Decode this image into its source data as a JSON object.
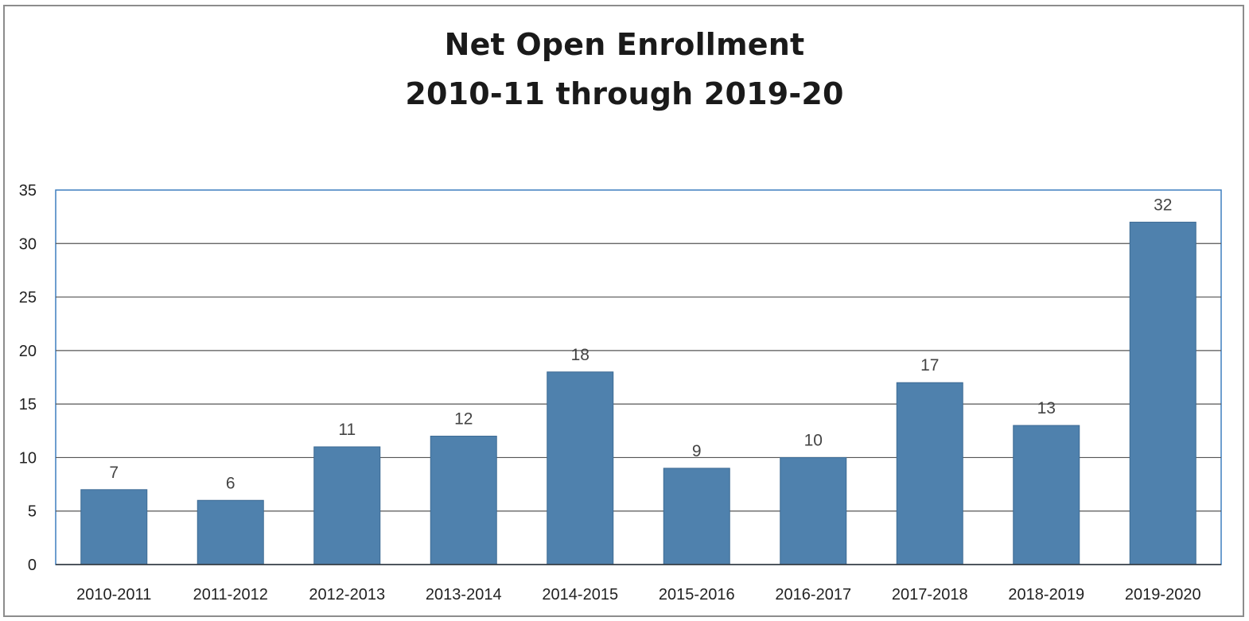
{
  "chart_data": {
    "type": "bar",
    "title": "Net Open Enrollment",
    "subtitle": "2010-11 through 2019-20",
    "xlabel": "",
    "ylabel": "",
    "categories": [
      "2010-2011",
      "2011-2012",
      "2012-2013",
      "2013-2014",
      "2014-2015",
      "2015-2016",
      "2016-2017",
      "2017-2018",
      "2018-2019",
      "2019-2020"
    ],
    "values": [
      7,
      6,
      11,
      12,
      18,
      9,
      10,
      17,
      13,
      32
    ],
    "data_labels": [
      "7",
      "6",
      "11",
      "12",
      "18",
      "9",
      "10",
      "17",
      "13",
      "32"
    ],
    "ylim": [
      0,
      35
    ],
    "yticks": [
      0,
      5,
      10,
      15,
      20,
      25,
      30,
      35
    ],
    "ytick_labels": [
      "0",
      "5",
      "10",
      "15",
      "20",
      "25",
      "30",
      "35"
    ],
    "grid": true,
    "legend": "none",
    "colors": {
      "bar": "#4f81ad",
      "bar_edge": "#3d6a94",
      "grid": "#555555",
      "plot_border": "#3f7fbf"
    }
  }
}
